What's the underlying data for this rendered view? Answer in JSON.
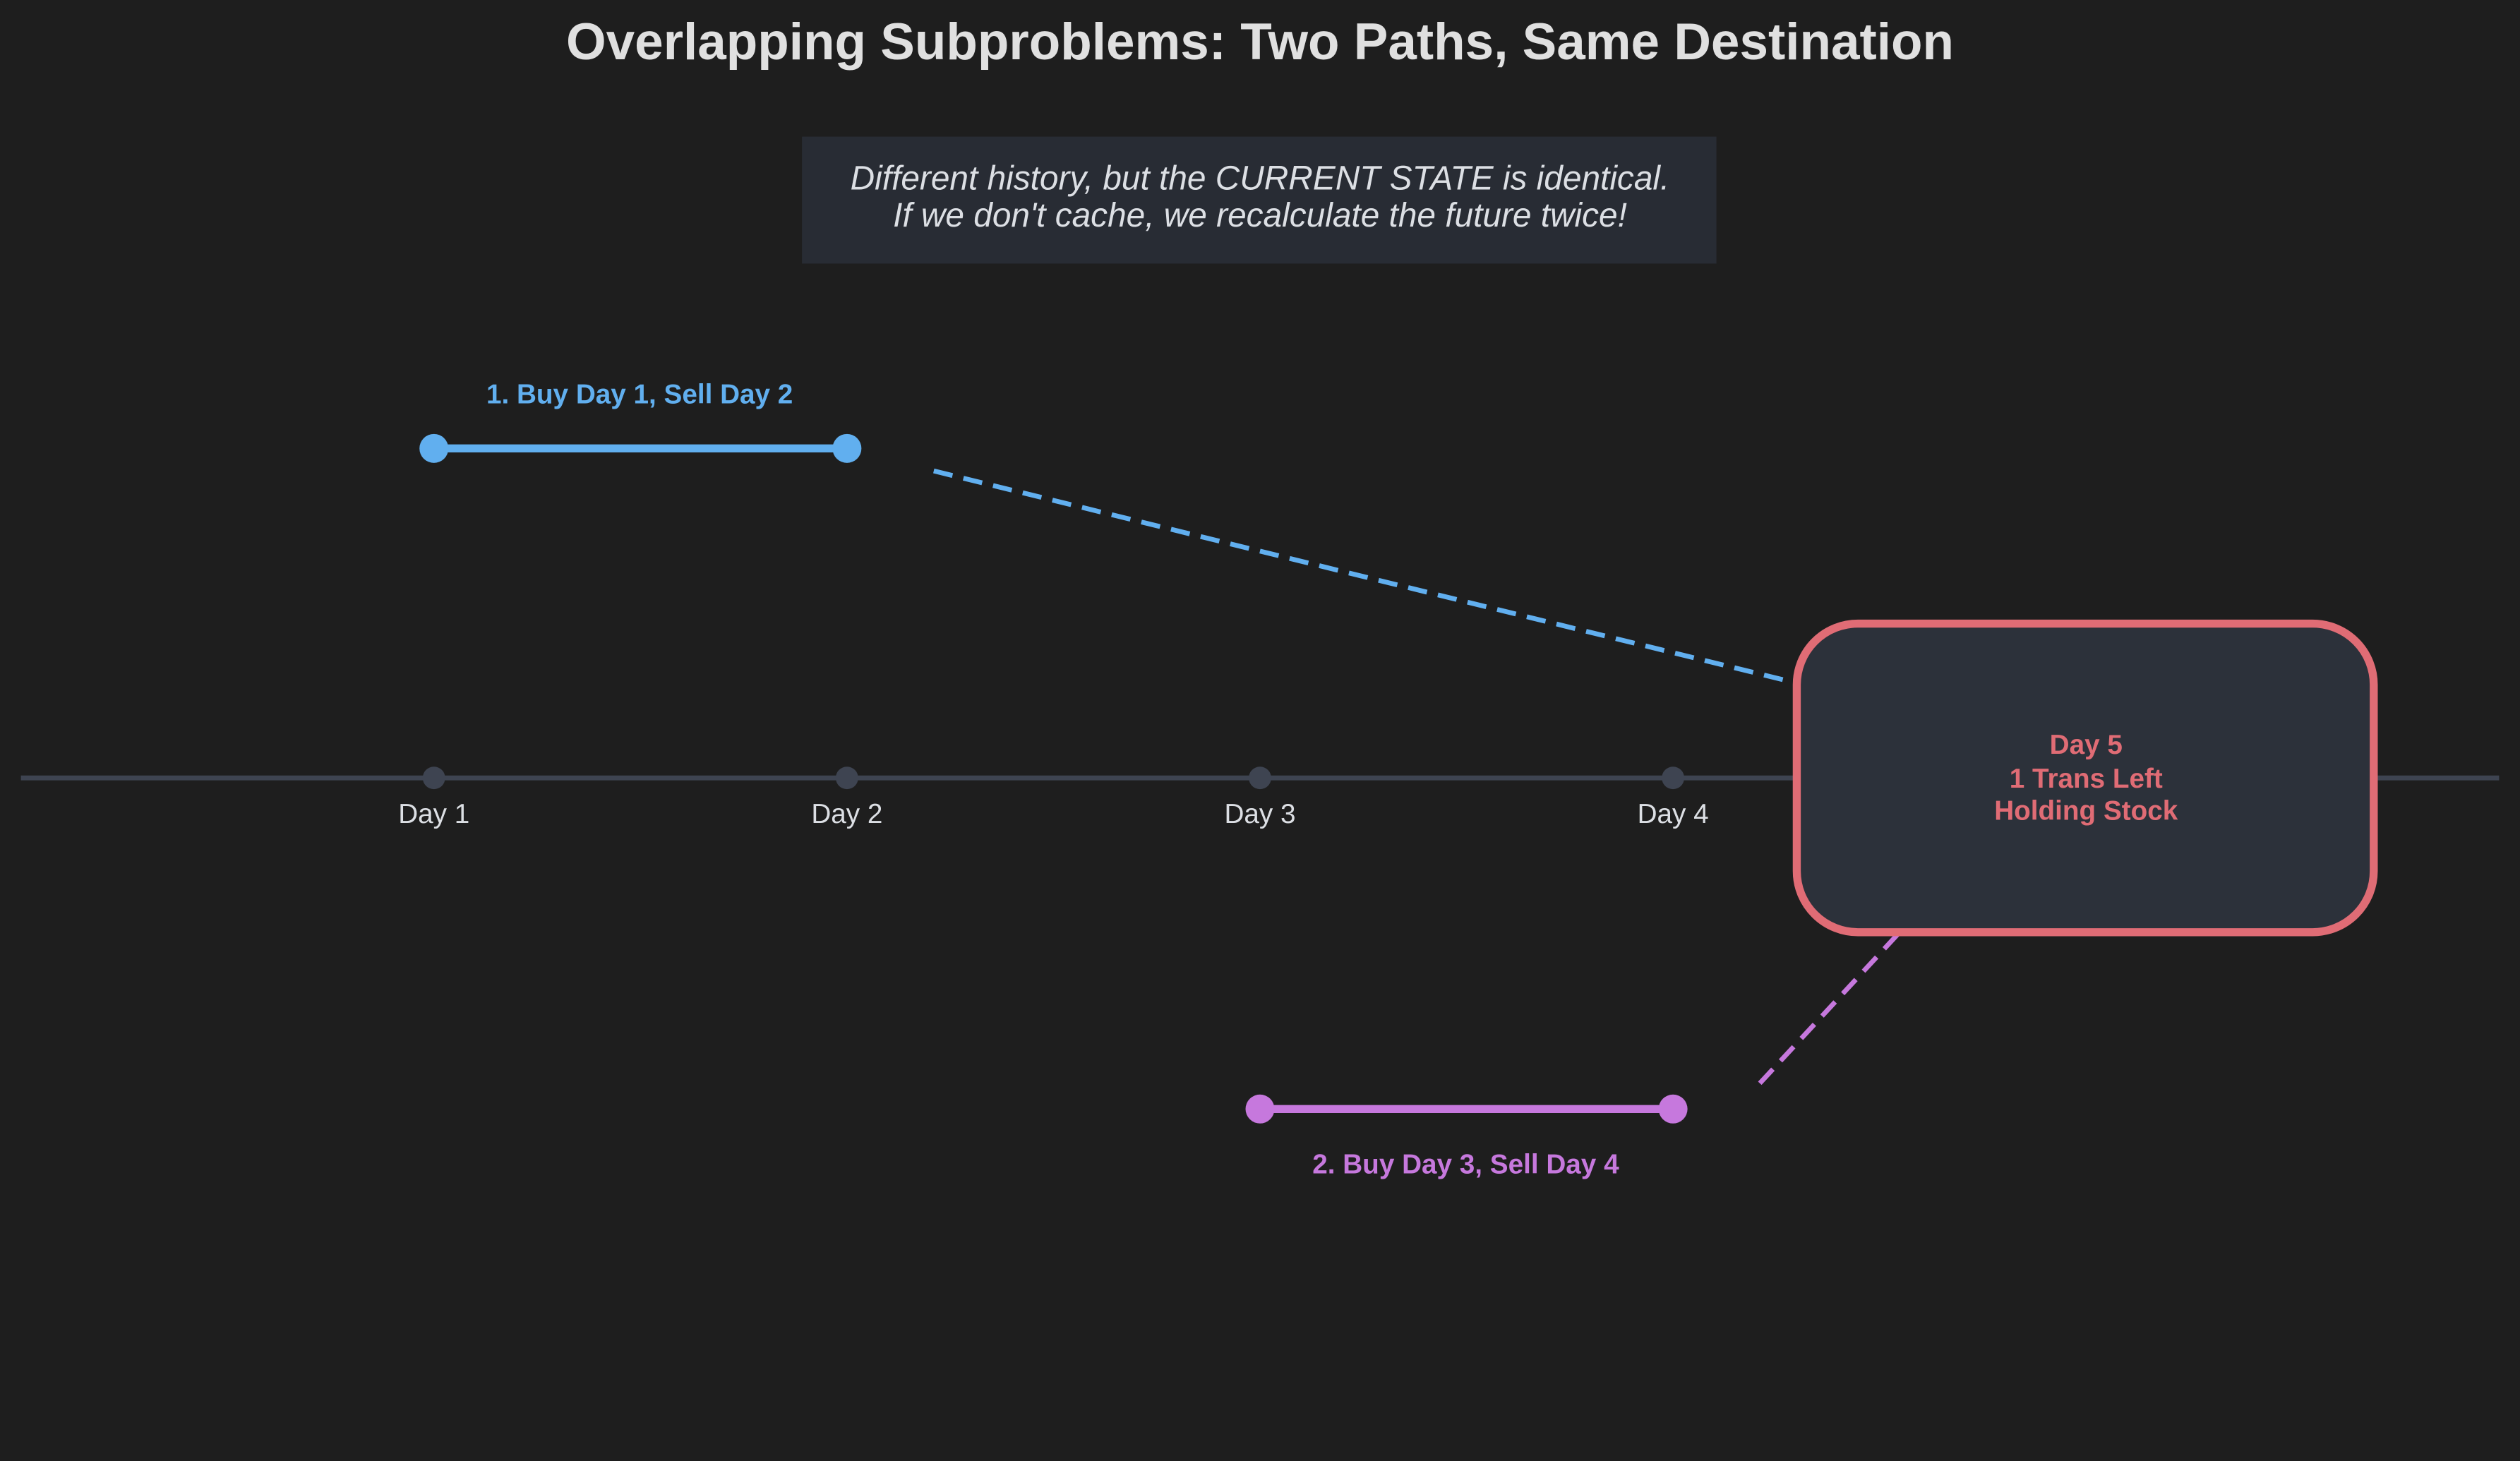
{
  "title": "Overlapping Subproblems: Two Paths, Same Destination",
  "note": {
    "line1": "Different history, but the CURRENT STATE is identical.",
    "line2": "If we don't cache, we recalculate the future twice!"
  },
  "timeline": {
    "days": [
      "Day 1",
      "Day 2",
      "Day 3",
      "Day 4",
      "Day 5"
    ]
  },
  "paths": [
    {
      "label": "1. Buy Day 1, Sell Day 2",
      "buy_day": 1,
      "sell_day": 2,
      "color": "#61afef"
    },
    {
      "label": "2. Buy Day 3, Sell Day 4",
      "buy_day": 3,
      "sell_day": 4,
      "color": "#c678dd"
    }
  ],
  "state": {
    "line1": "Day 5",
    "line2": "1 Trans Left",
    "line3": "Holding Stock",
    "color": "#e06c75"
  },
  "colors": {
    "background": "#1e1e1e",
    "axis": "#3e4451",
    "panel": "#282c34",
    "state_fill": "#2c313a"
  }
}
